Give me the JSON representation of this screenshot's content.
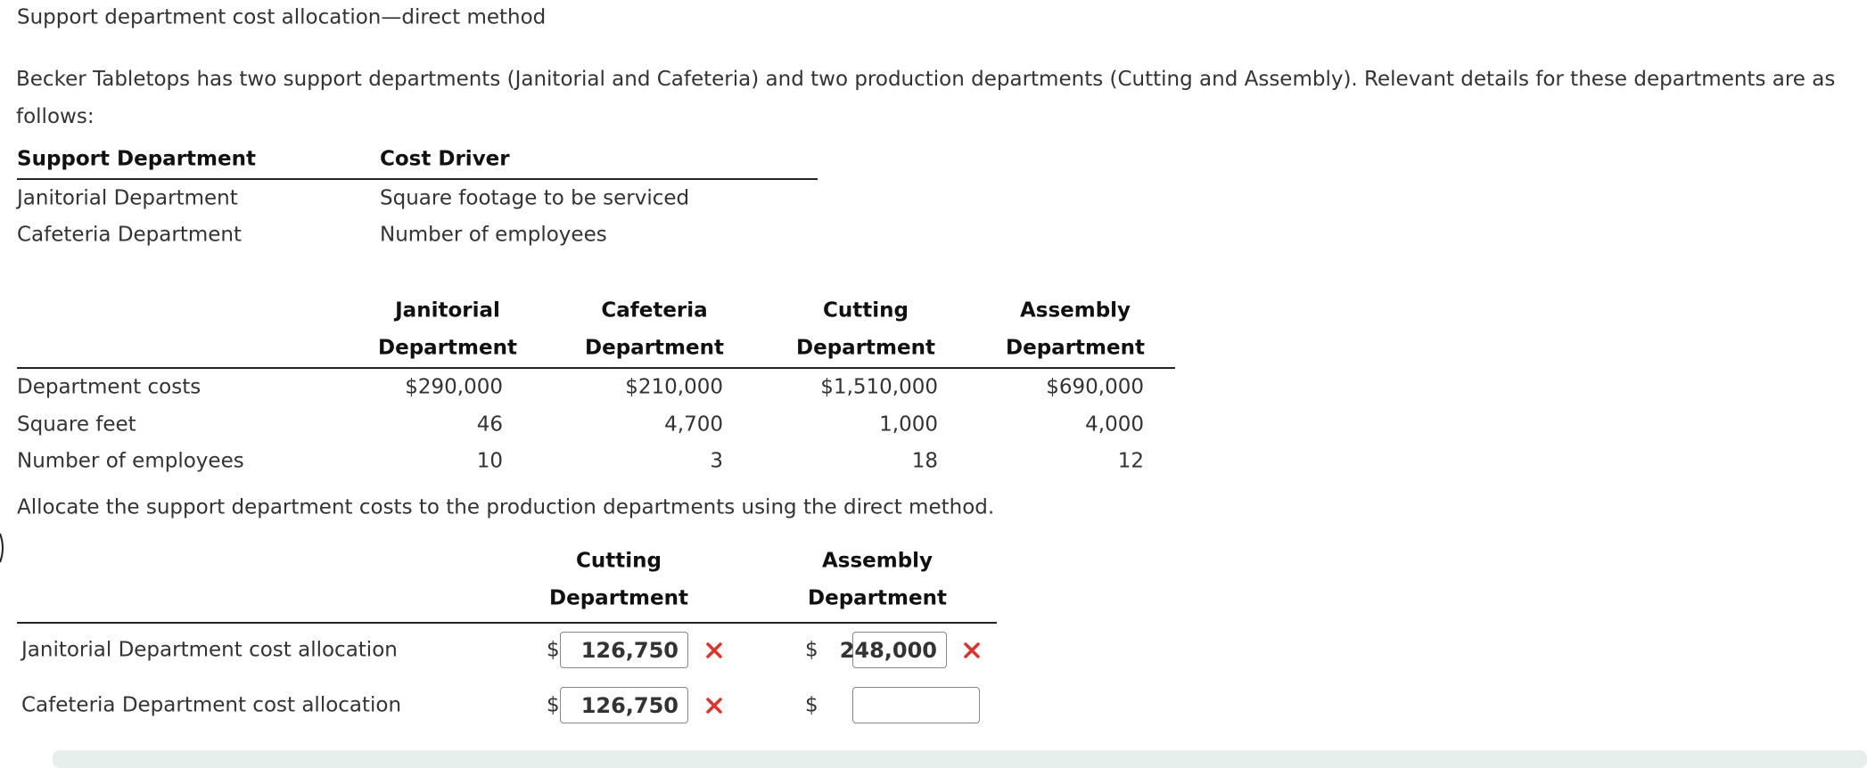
{
  "header": {
    "title": "Support department cost allocation—direct method"
  },
  "intro": "Becker Tabletops has two support departments (Janitorial and Cafeteria) and two production departments (Cutting and Assembly). Relevant details for these departments are as follows:",
  "drivers_table": {
    "headers": [
      "Support Department",
      "Cost Driver"
    ],
    "rows": [
      [
        "Janitorial Department",
        "Square footage to be serviced"
      ],
      [
        "Cafeteria Department",
        "Number of employees"
      ]
    ]
  },
  "details_table": {
    "headers": [
      [
        "Janitorial",
        "Department"
      ],
      [
        "Cafeteria",
        "Department"
      ],
      [
        "Cutting",
        "Department"
      ],
      [
        "Assembly",
        "Department"
      ]
    ],
    "rows": [
      {
        "label": "Department costs",
        "cells": [
          "$290,000",
          "$210,000",
          "$1,510,000",
          "$690,000"
        ]
      },
      {
        "label": "Square feet",
        "cells": [
          "46",
          "4,700",
          "1,000",
          "4,000"
        ]
      },
      {
        "label": "Number of employees",
        "cells": [
          "10",
          "3",
          "18",
          "12"
        ]
      }
    ]
  },
  "instruction": "Allocate the support department costs to the production departments using the direct method.",
  "answer_table": {
    "headers": [
      [
        "Cutting",
        "Department"
      ],
      [
        "Assembly",
        "Department"
      ]
    ],
    "rows": [
      {
        "label": "Janitorial Department cost allocation",
        "cells": [
          {
            "currency": "$",
            "value": "126,750",
            "status": "incorrect"
          },
          {
            "currency": "$",
            "value": "248,000",
            "status": "incorrect"
          }
        ]
      },
      {
        "label": "Cafeteria Department cost allocation",
        "cells": [
          {
            "currency": "$",
            "value": "126,750",
            "status": "incorrect"
          },
          {
            "currency": "$",
            "value": null,
            "status": null
          }
        ]
      }
    ]
  }
}
